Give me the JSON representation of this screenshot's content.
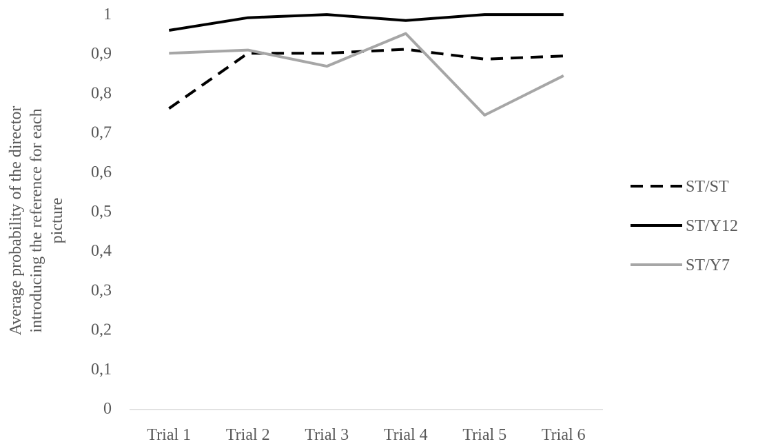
{
  "chart_data": {
    "type": "line",
    "categories": [
      "Trial 1",
      "Trial 2",
      "Trial 3",
      "Trial 4",
      "Trial 5",
      "Trial 6"
    ],
    "ylabel_lines": [
      "Average probability of the director",
      "introducing the reference for each",
      "picture"
    ],
    "ylim": [
      0,
      1
    ],
    "ytick_labels": [
      "0",
      "0,1",
      "0,2",
      "0,3",
      "0,4",
      "0,5",
      "0,6",
      "0,7",
      "0,8",
      "0,9",
      "1"
    ],
    "ytick_values": [
      0,
      0.1,
      0.2,
      0.3,
      0.4,
      0.5,
      0.6,
      0.7,
      0.8,
      0.9,
      1.0
    ],
    "grid": false,
    "legend_position": "right",
    "series": [
      {
        "name": "ST/ST",
        "values": [
          0.76,
          0.9,
          0.9,
          0.91,
          0.885,
          0.893
        ],
        "color": "#000000",
        "style": "dashed"
      },
      {
        "name": "ST/Y12",
        "values": [
          0.958,
          0.99,
          0.998,
          0.983,
          0.998,
          0.998
        ],
        "color": "#000000",
        "style": "solid"
      },
      {
        "name": "ST/Y7",
        "values": [
          0.9,
          0.908,
          0.867,
          0.95,
          0.743,
          0.843
        ],
        "color": "#a6a6a6",
        "style": "solid"
      }
    ]
  }
}
